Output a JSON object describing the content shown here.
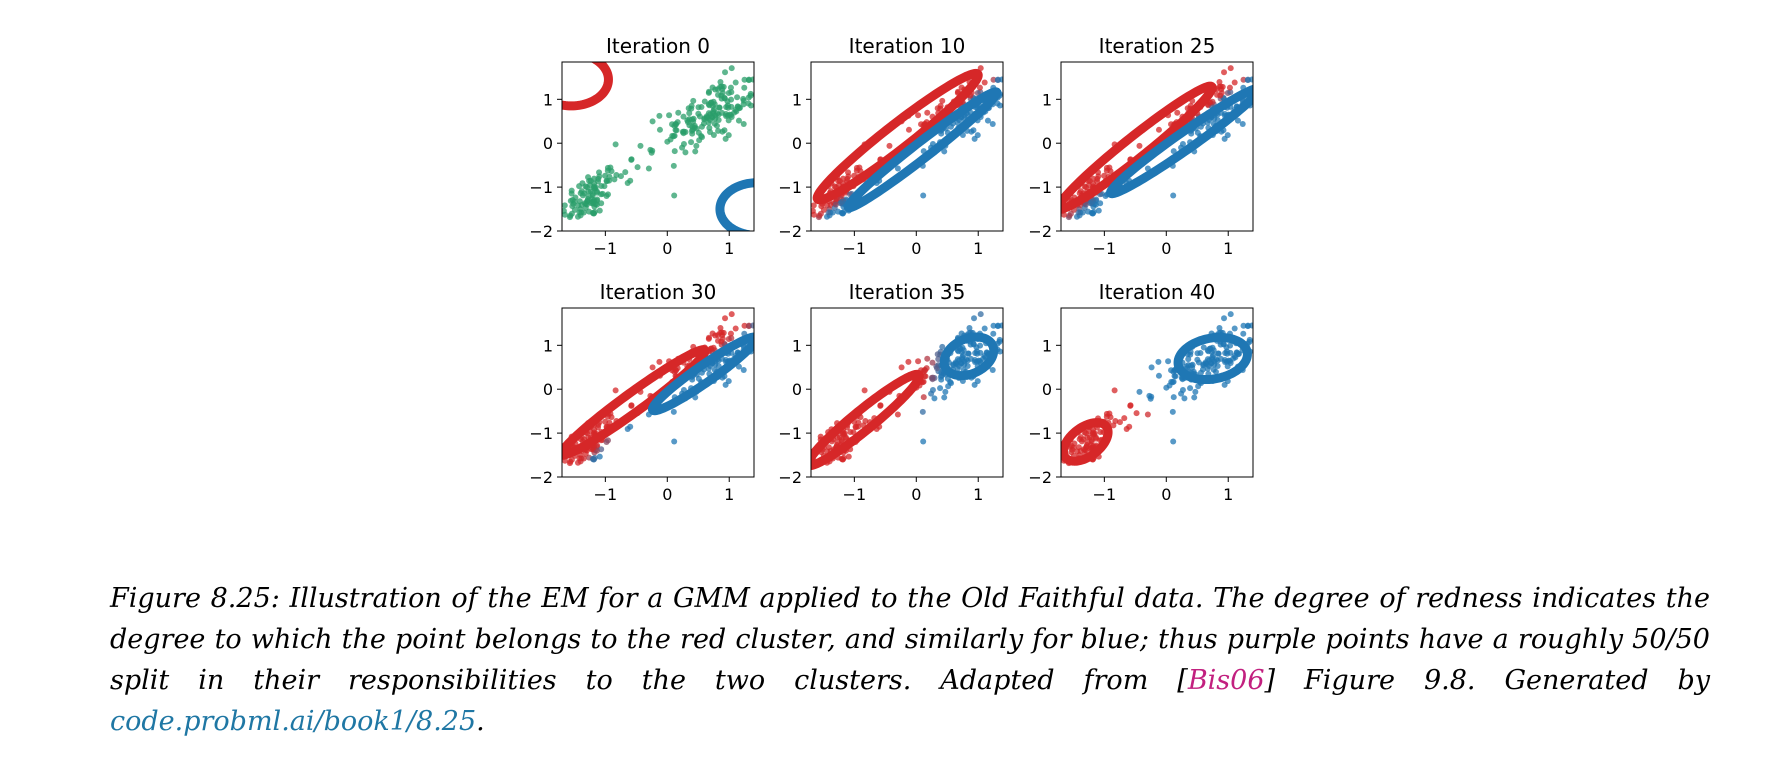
{
  "chart_data": [
    {
      "type": "scatter",
      "title": "Iteration 0",
      "xlim": [
        -1.7,
        1.4
      ],
      "ylim": [
        -2.0,
        1.85
      ],
      "xticks": [
        -1,
        0,
        1
      ],
      "yticks": [
        -2,
        -1,
        0,
        1
      ],
      "xtick_labels": [
        "−1",
        "0",
        "1"
      ],
      "ytick_labels": [
        "−2",
        "−1",
        "0",
        "1"
      ],
      "points": "responsibility-colored",
      "colors": "green",
      "ellipses": [
        {
          "color": "#d62728",
          "center": [
            -1.55,
            1.45
          ],
          "sx": 0.3,
          "sy": 0.3,
          "rho": 0
        },
        {
          "color": "#1f77b4",
          "center": [
            1.45,
            -1.5
          ],
          "sx": 0.3,
          "sy": 0.3,
          "rho": 0
        }
      ]
    },
    {
      "type": "scatter",
      "title": "Iteration 10",
      "xlim": [
        -1.7,
        1.4
      ],
      "ylim": [
        -2.0,
        1.85
      ],
      "xticks": [
        -1,
        0,
        1
      ],
      "yticks": [
        -2,
        -1,
        0,
        1
      ],
      "xtick_labels": [
        "−1",
        "0",
        "1"
      ],
      "ytick_labels": [
        "−2",
        "−1",
        "0",
        "1"
      ],
      "ellipses": [
        {
          "color": "#d62728",
          "center": [
            -0.3,
            0.15
          ],
          "sx": 0.65,
          "sy": 0.72,
          "rho": 0.97
        },
        {
          "color": "#1f77b4",
          "center": [
            0.1,
            -0.15
          ],
          "sx": 0.6,
          "sy": 0.66,
          "rho": 0.985
        }
      ]
    },
    {
      "type": "scatter",
      "title": "Iteration 25",
      "xlim": [
        -1.7,
        1.4
      ],
      "ylim": [
        -2.0,
        1.85
      ],
      "xticks": [
        -1,
        0,
        1
      ],
      "yticks": [
        -2,
        -1,
        0,
        1
      ],
      "xtick_labels": [
        "−1",
        "0",
        "1"
      ],
      "ytick_labels": [
        "−2",
        "−1",
        "0",
        "1"
      ],
      "ellipses": [
        {
          "color": "#d62728",
          "center": [
            -0.5,
            -0.1
          ],
          "sx": 0.62,
          "sy": 0.7,
          "rho": 0.975
        },
        {
          "color": "#1f77b4",
          "center": [
            0.3,
            0.05
          ],
          "sx": 0.6,
          "sy": 0.6,
          "rho": 0.98
        }
      ]
    },
    {
      "type": "scatter",
      "title": "Iteration 30",
      "xlim": [
        -1.7,
        1.4
      ],
      "ylim": [
        -2.0,
        1.85
      ],
      "xticks": [
        -1,
        0,
        1
      ],
      "yticks": [
        -2,
        -1,
        0,
        1
      ],
      "xtick_labels": [
        "−1",
        "0",
        "1"
      ],
      "ytick_labels": [
        "−2",
        "−1",
        "0",
        "1"
      ],
      "ellipses": [
        {
          "color": "#d62728",
          "center": [
            -0.55,
            -0.3
          ],
          "sx": 0.58,
          "sy": 0.6,
          "rho": 0.975
        },
        {
          "color": "#1f77b4",
          "center": [
            0.6,
            0.35
          ],
          "sx": 0.42,
          "sy": 0.42,
          "rho": 0.96
        }
      ]
    },
    {
      "type": "scatter",
      "title": "Iteration 35",
      "xlim": [
        -1.7,
        1.4
      ],
      "ylim": [
        -2.0,
        1.85
      ],
      "xticks": [
        -1,
        0,
        1
      ],
      "yticks": [
        -2,
        -1,
        0,
        1
      ],
      "xtick_labels": [
        "−1",
        "0",
        "1"
      ],
      "ytick_labels": [
        "−2",
        "−1",
        "0",
        "1"
      ],
      "ellipses": [
        {
          "color": "#d62728",
          "center": [
            -0.85,
            -0.7
          ],
          "sx": 0.45,
          "sy": 0.52,
          "rho": 0.96
        },
        {
          "color": "#1f77b4",
          "center": [
            0.85,
            0.75
          ],
          "sx": 0.2,
          "sy": 0.22,
          "rho": 0.3
        }
      ]
    },
    {
      "type": "scatter",
      "title": "Iteration 40",
      "xlim": [
        -1.7,
        1.4
      ],
      "ylim": [
        -2.0,
        1.85
      ],
      "xticks": [
        -1,
        0,
        1
      ],
      "yticks": [
        -2,
        -1,
        0,
        1
      ],
      "xtick_labels": [
        "−1",
        "0",
        "1"
      ],
      "ytick_labels": [
        "−2",
        "−1",
        "0",
        "1"
      ],
      "ellipses": [
        {
          "color": "#d62728",
          "center": [
            -1.3,
            -1.2
          ],
          "sx": 0.18,
          "sy": 0.22,
          "rho": 0.5
        },
        {
          "color": "#1f77b4",
          "center": [
            0.75,
            0.7
          ],
          "sx": 0.28,
          "sy": 0.24,
          "rho": 0.2
        }
      ]
    }
  ],
  "caption": {
    "part1": "Figure 8.25: Illustration of the EM for a GMM applied to the Old Faithful data. The degree of redness indicates the degree to which the point belongs to the red cluster, and similarly for blue; thus purple points have a roughly 50/50 split in their responsibilities to the two clusters. Adapted from [",
    "cite": "Bis06",
    "part2": "] Figure 9.8. Generated by ",
    "link": "code.probml.ai/book1/8.25",
    "part3": "."
  }
}
